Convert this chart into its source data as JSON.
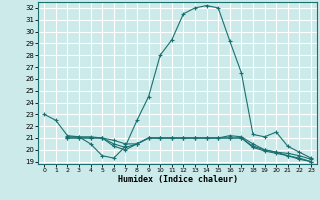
{
  "title": "",
  "xlabel": "Humidex (Indice chaleur)",
  "ylabel": "",
  "background_color": "#cceaea",
  "grid_color": "#ffffff",
  "line_color": "#1a7070",
  "xlim": [
    -0.5,
    23.5
  ],
  "ylim": [
    18.8,
    32.5
  ],
  "yticks": [
    19,
    20,
    21,
    22,
    23,
    24,
    25,
    26,
    27,
    28,
    29,
    30,
    31,
    32
  ],
  "xticks": [
    0,
    1,
    2,
    3,
    4,
    5,
    6,
    7,
    8,
    9,
    10,
    11,
    12,
    13,
    14,
    15,
    16,
    17,
    18,
    19,
    20,
    21,
    22,
    23
  ],
  "lines": [
    {
      "x": [
        0,
        1,
        2,
        3,
        4,
        5,
        6,
        7,
        8,
        9,
        10,
        11,
        12,
        13,
        14,
        15,
        16,
        17,
        18,
        19,
        20,
        21,
        22,
        23
      ],
      "y": [
        23.0,
        22.5,
        21.2,
        21.1,
        20.5,
        19.5,
        19.3,
        20.3,
        22.5,
        24.5,
        28.0,
        29.3,
        31.5,
        32.0,
        32.2,
        32.0,
        29.2,
        26.5,
        21.3,
        21.1,
        21.5,
        20.3,
        19.8,
        19.3
      ]
    },
    {
      "x": [
        2,
        3,
        4,
        5,
        6,
        7,
        8,
        9,
        10,
        11,
        12,
        13,
        14,
        15,
        16,
        17,
        18,
        19,
        20,
        21,
        22,
        23
      ],
      "y": [
        21.1,
        21.1,
        21.1,
        21.0,
        20.8,
        20.5,
        20.5,
        21.0,
        21.0,
        21.0,
        21.0,
        21.0,
        21.0,
        21.0,
        21.2,
        21.1,
        20.5,
        20.0,
        19.8,
        19.7,
        19.5,
        19.2
      ]
    },
    {
      "x": [
        2,
        3,
        4,
        5,
        6,
        7,
        8,
        9,
        10,
        11,
        12,
        13,
        14,
        15,
        16,
        17,
        18,
        19,
        20,
        21,
        22,
        23
      ],
      "y": [
        21.0,
        21.0,
        21.0,
        21.0,
        20.5,
        20.2,
        20.5,
        21.0,
        21.0,
        21.0,
        21.0,
        21.0,
        21.0,
        21.0,
        21.0,
        21.0,
        20.3,
        20.0,
        19.8,
        19.5,
        19.3,
        19.0
      ]
    },
    {
      "x": [
        2,
        3,
        4,
        5,
        6,
        7,
        8,
        9,
        10,
        11,
        12,
        13,
        14,
        15,
        16,
        17,
        18,
        19,
        20,
        21,
        22,
        23
      ],
      "y": [
        21.0,
        21.0,
        21.0,
        21.0,
        20.3,
        20.0,
        20.5,
        21.0,
        21.0,
        21.0,
        21.0,
        21.0,
        21.0,
        21.0,
        21.0,
        21.0,
        20.2,
        19.9,
        19.7,
        19.5,
        19.2,
        19.0
      ]
    }
  ]
}
